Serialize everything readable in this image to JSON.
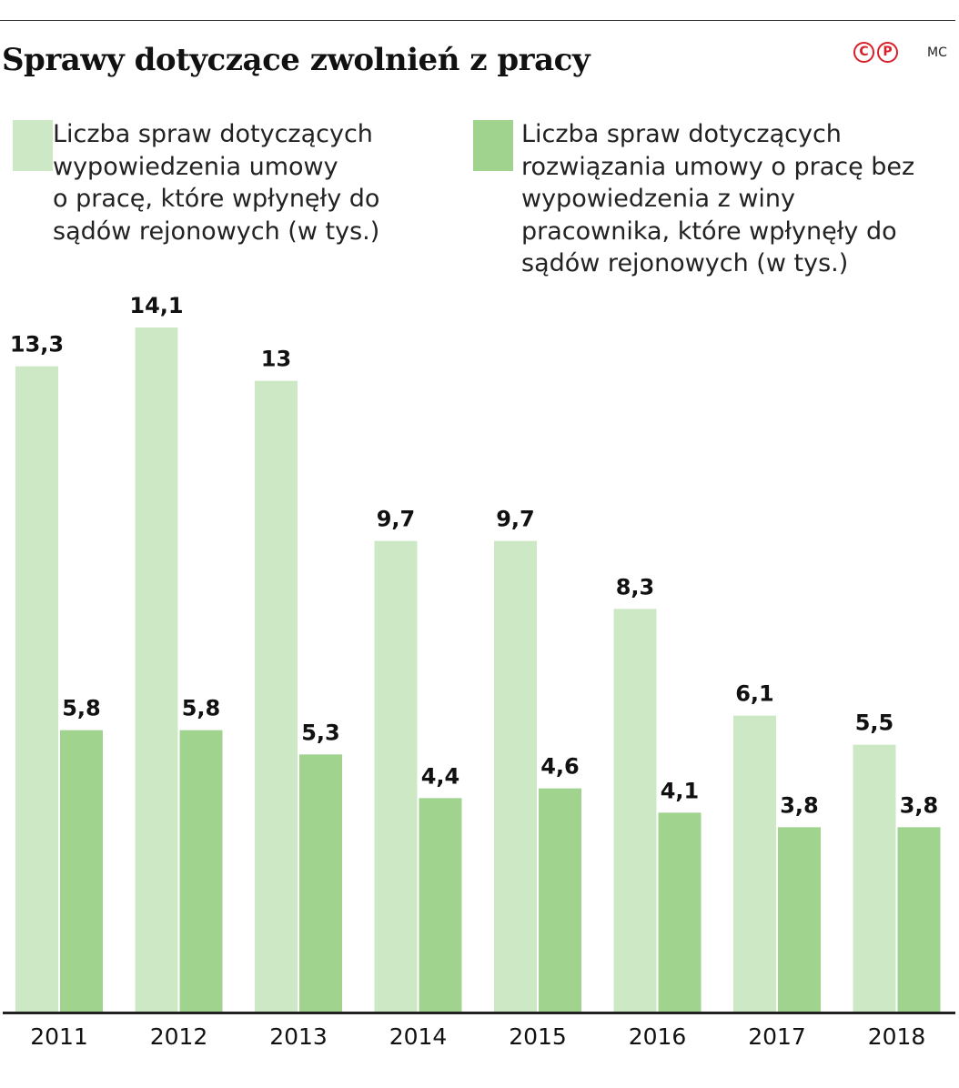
{
  "header": {
    "title": "Sprawy dotyczące zwolnień z pracy",
    "logo_text": "CP",
    "author": "MC"
  },
  "legend": [
    {
      "color": "#cde8c5",
      "lines": [
        "Liczba spraw dotyczących",
        "wypowiedzenia umowy",
        "o pracę, które wpłynęły do",
        "sądów rejonowych (w tys.)"
      ]
    },
    {
      "color": "#9fd38e",
      "lines": [
        "Liczba spraw dotyczących",
        "rozwiązania umowy o pracę bez",
        "wypowiedzenia z winy",
        "pracownika, które wpłynęły do",
        "sądów rejonowych (w tys.)"
      ]
    }
  ],
  "chart_data": {
    "type": "bar",
    "categories": [
      "2011",
      "2012",
      "2013",
      "2014",
      "2015",
      "2016",
      "2017",
      "2018"
    ],
    "series": [
      {
        "name": "Liczba spraw dotyczących wypowiedzenia umowy o pracę, które wpłynęły do sądów rejonowych (w tys.)",
        "color": "#cde8c5",
        "values": [
          13.3,
          14.1,
          13,
          9.7,
          9.7,
          8.3,
          6.1,
          5.5
        ],
        "labels": [
          "13,3",
          "14,1",
          "13",
          "9,7",
          "9,7",
          "8,3",
          "6,1",
          "5,5"
        ]
      },
      {
        "name": "Liczba spraw dotyczących rozwiązania umowy o pracę bez wypowiedzenia z winy pracownika, które wpłynęły do sądów rejonowych (w tys.)",
        "color": "#9fd38e",
        "values": [
          5.8,
          5.8,
          5.3,
          4.4,
          4.6,
          4.1,
          3.8,
          3.8
        ],
        "labels": [
          "5,8",
          "5,8",
          "5,3",
          "4,4",
          "4,6",
          "4,1",
          "3,8",
          "3,8"
        ]
      }
    ],
    "ylim": [
      0,
      14.1
    ],
    "grid": false,
    "legend_position": "top"
  }
}
